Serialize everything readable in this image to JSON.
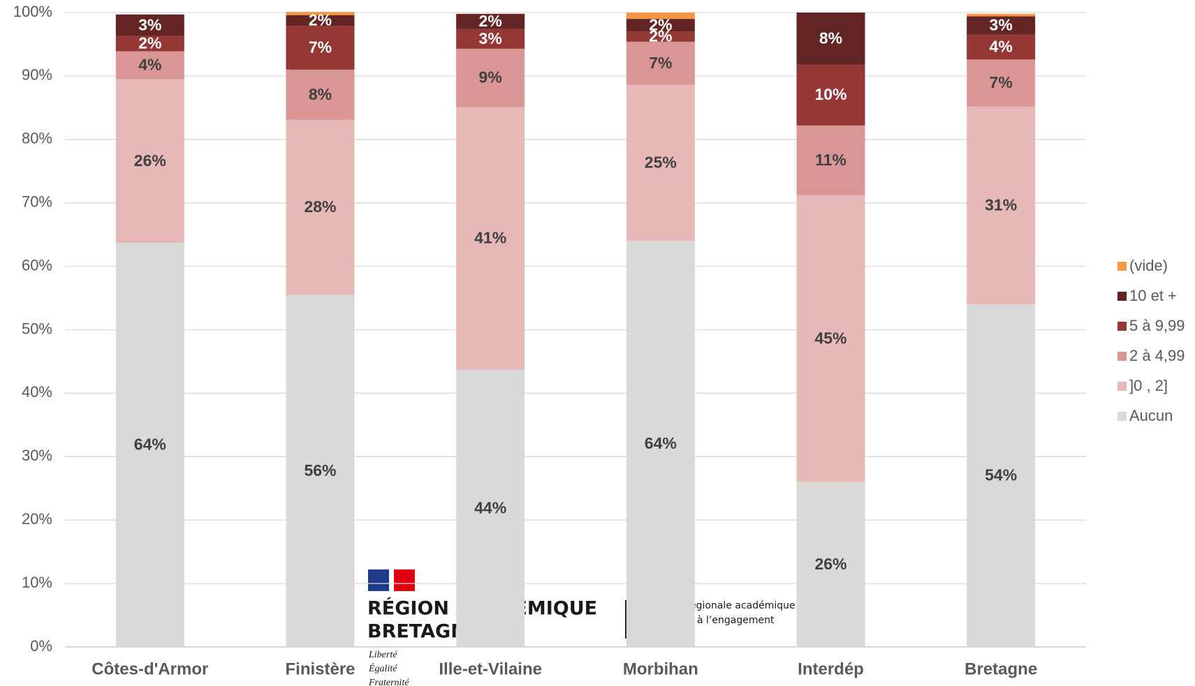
{
  "chart_data": {
    "type": "stacked_bar",
    "categories": [
      "Côtes-d'Armor",
      "Finistère",
      "Ille-et-Vilaine",
      "Morbihan",
      "Interdép",
      "Bretagne"
    ],
    "series": [
      {
        "name": "Aucun",
        "color": "#d9d9d9",
        "label_color": "#404040",
        "values": [
          63.7,
          55.5,
          43.7,
          64.0,
          26.0,
          54.0
        ],
        "value_labels": [
          "64%",
          "56%",
          "44%",
          "64%",
          "26%",
          "54%"
        ]
      },
      {
        "name": "]0 , 2]",
        "color": "#e6b9b8",
        "label_color": "#404040",
        "values": [
          25.8,
          27.6,
          41.4,
          24.6,
          45.2,
          31.2
        ],
        "value_labels": [
          "26%",
          "28%",
          "41%",
          "25%",
          "45%",
          "31%"
        ]
      },
      {
        "name": "2 à 4,99",
        "color": "#d99694",
        "label_color": "#404040",
        "values": [
          4.4,
          7.9,
          9.2,
          6.8,
          11.0,
          7.4
        ],
        "value_labels": [
          "4%",
          "8%",
          "9%",
          "7%",
          "11%",
          "7%"
        ]
      },
      {
        "name": "5 à 9,99",
        "color": "#953735",
        "label_color": "#ffffff",
        "values": [
          2.4,
          6.9,
          3.1,
          1.6,
          9.6,
          3.9
        ],
        "value_labels": [
          "2%",
          "7%",
          "3%",
          "2%",
          "10%",
          "4%"
        ]
      },
      {
        "name": "10 et +",
        "color": "#632523",
        "label_color": "#ffffff",
        "values": [
          3.4,
          1.7,
          2.4,
          2.0,
          8.2,
          2.9
        ],
        "value_labels": [
          "3%",
          "2%",
          "2%",
          "2%",
          "8%",
          "3%"
        ]
      },
      {
        "name": "(vide)",
        "color": "#f79646",
        "label_color": "#ffffff",
        "values": [
          0,
          0.5,
          0,
          1.0,
          0,
          0.4
        ],
        "value_labels": [
          null,
          null,
          null,
          null,
          null,
          null
        ]
      }
    ],
    "ylim": [
      0,
      100
    ],
    "yticks": [
      {
        "value": 0,
        "label": "0%"
      },
      {
        "value": 10,
        "label": "10%"
      },
      {
        "value": 20,
        "label": "20%"
      },
      {
        "value": 30,
        "label": "30%"
      },
      {
        "value": 40,
        "label": "40%"
      },
      {
        "value": 50,
        "label": "50%"
      },
      {
        "value": 60,
        "label": "60%"
      },
      {
        "value": 70,
        "label": "70%"
      },
      {
        "value": 80,
        "label": "80%"
      },
      {
        "value": 90,
        "label": "90%"
      },
      {
        "value": 100,
        "label": "100%"
      }
    ],
    "grid": true,
    "legend": "right"
  },
  "watermark": {
    "line1": "RÉGION ACADÉMIQUE",
    "line2": "BRETAGNE",
    "motto": [
      "Liberté",
      "Égalité",
      "Fraternité"
    ],
    "side1": "égionale académique",
    "side2": "à l’engagement"
  }
}
